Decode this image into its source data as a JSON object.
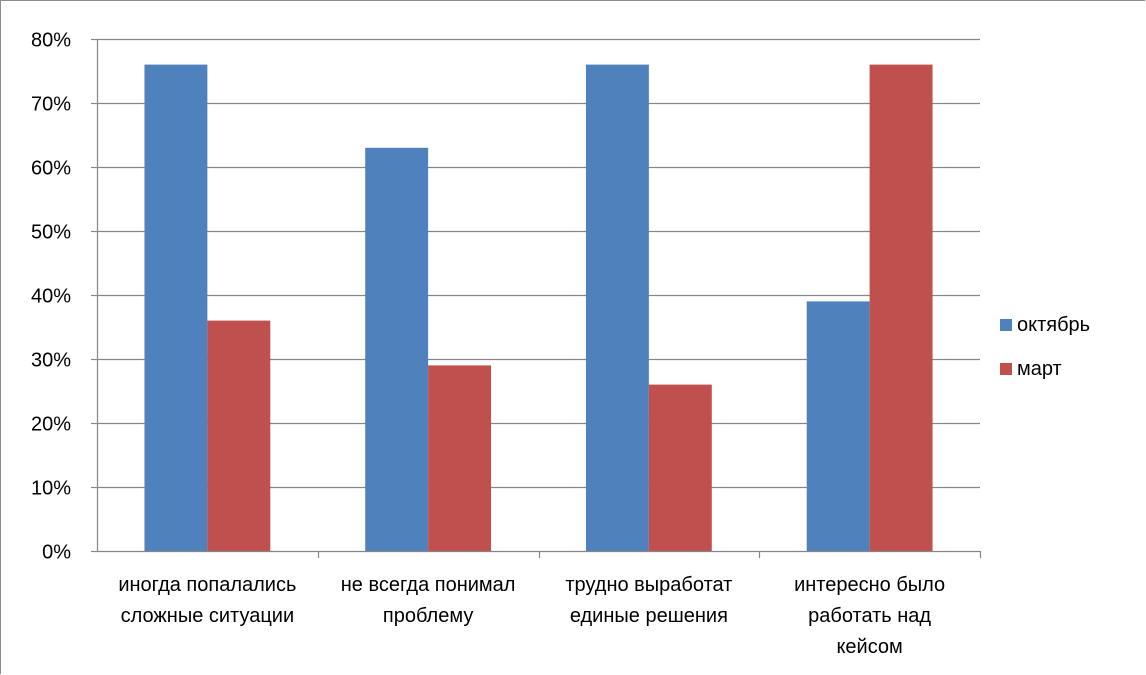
{
  "chart_data": {
    "type": "bar",
    "categories": [
      [
        "иногда попалались",
        "сложные ситуации"
      ],
      [
        "не всегда понимал",
        "проблему"
      ],
      [
        "трудно выработат",
        "единые решения"
      ],
      [
        "интересно было",
        "работать над",
        "кейсом"
      ]
    ],
    "series": [
      {
        "name": "октябрь",
        "color": "#4f81bd",
        "values": [
          0.76,
          0.63,
          0.76,
          0.39
        ]
      },
      {
        "name": "март",
        "color": "#c0504d",
        "values": [
          0.36,
          0.29,
          0.26,
          0.76
        ]
      }
    ],
    "y_ticks": [
      "0%",
      "10%",
      "20%",
      "30%",
      "40%",
      "50%",
      "60%",
      "70%",
      "80%"
    ],
    "ylim": [
      0,
      0.8
    ],
    "grid": true,
    "gridline_color": "#868686",
    "legend_position": "right"
  }
}
